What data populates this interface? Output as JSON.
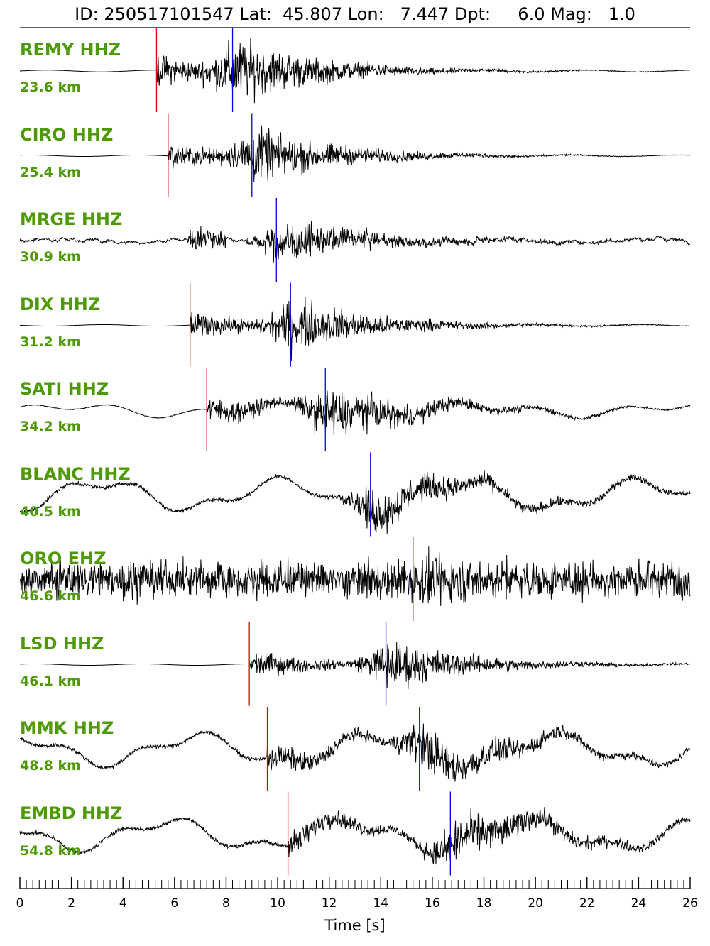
{
  "header": {
    "id_label": "ID:",
    "id": "250517101547",
    "lat_label": "Lat:",
    "lat": "45.807",
    "lon_label": "Lon:",
    "lon": "7.447",
    "depth_label": "Dpt:",
    "depth": "6.0",
    "mag_label": "Mag:",
    "mag": "1.0"
  },
  "chart_data": {
    "type": "line",
    "title": "",
    "xlabel": "Time [s]",
    "ylabel": "",
    "xlim": [
      0,
      26
    ],
    "x_ticks": [
      "0",
      "2",
      "4",
      "6",
      "8",
      "10",
      "12",
      "14",
      "16",
      "18",
      "20",
      "22",
      "24",
      "26"
    ],
    "colors": {
      "trace": "#000000",
      "p_pick": "#e00000",
      "s_pick": "#0000e6",
      "label": "#4d9a06"
    },
    "stations": [
      {
        "name": "REMY HHZ",
        "distance": "23.6 km",
        "p_time": 5.3,
        "s_time": 8.25,
        "amplitude": "high",
        "character": "impulsive"
      },
      {
        "name": "CIRO HHZ",
        "distance": "25.4 km",
        "p_time": 5.75,
        "s_time": 9.0,
        "amplitude": "medium",
        "character": "impulsive"
      },
      {
        "name": "MRGE HHZ",
        "distance": "30.9 km",
        "p_time": null,
        "s_time": 9.95,
        "amplitude": "medium",
        "character": "emergent"
      },
      {
        "name": "DIX HHZ",
        "distance": "31.2 km",
        "p_time": 6.6,
        "s_time": 10.5,
        "amplitude": "medium",
        "character": "impulsive"
      },
      {
        "name": "SATI HHZ",
        "distance": "34.2 km",
        "p_time": 7.25,
        "s_time": 11.85,
        "amplitude": "medium",
        "character": "drift"
      },
      {
        "name": "BLANC HHZ",
        "distance": "40.5 km",
        "p_time": null,
        "s_time": 13.6,
        "amplitude": "medium",
        "character": "long-period"
      },
      {
        "name": "ORO EHZ",
        "distance": "46.6 km",
        "p_time": null,
        "s_time": 15.25,
        "amplitude": "high",
        "character": "noisy"
      },
      {
        "name": "LSD HHZ",
        "distance": "46.1 km",
        "p_time": 8.9,
        "s_time": 14.2,
        "amplitude": "medium",
        "character": "impulsive"
      },
      {
        "name": "MMK HHZ",
        "distance": "48.8 km",
        "p_time": 9.6,
        "s_time": 15.5,
        "amplitude": "medium",
        "character": "long-period"
      },
      {
        "name": "EMBD HHZ",
        "distance": "54.8 km",
        "p_time": 10.4,
        "s_time": 16.7,
        "amplitude": "medium",
        "character": "long-period"
      }
    ]
  }
}
